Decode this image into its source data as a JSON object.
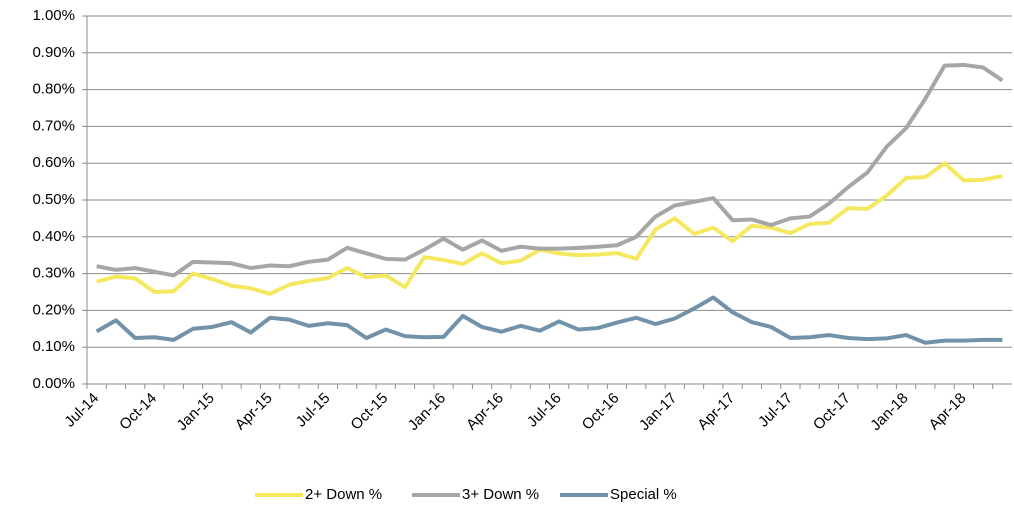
{
  "chart_data": {
    "type": "line",
    "categories": [
      "Jul-14",
      null,
      null,
      "Oct-14",
      null,
      null,
      "Jan-15",
      null,
      null,
      "Apr-15",
      null,
      null,
      "Jul-15",
      null,
      null,
      "Oct-15",
      null,
      null,
      "Jan-16",
      null,
      null,
      "Apr-16",
      null,
      null,
      "Jul-16",
      null,
      null,
      "Oct-16",
      null,
      null,
      "Jan-17",
      null,
      null,
      "Apr-17",
      null,
      null,
      "Jul-17",
      null,
      null,
      "Oct-17",
      null,
      null,
      "Jan-18",
      null,
      null,
      "Apr-18",
      null,
      null
    ],
    "series": [
      {
        "name": "2+ Down %",
        "color": "#f5e861",
        "values": [
          0.278,
          0.292,
          0.287,
          0.25,
          0.252,
          0.3,
          0.285,
          0.267,
          0.26,
          0.245,
          0.27,
          0.28,
          0.288,
          0.315,
          0.29,
          0.295,
          0.263,
          0.345,
          0.337,
          0.326,
          0.355,
          0.328,
          0.335,
          0.365,
          0.355,
          0.35,
          0.352,
          0.356,
          0.34,
          0.42,
          0.45,
          0.408,
          0.425,
          0.388,
          0.43,
          0.425,
          0.41,
          0.435,
          0.438,
          0.478,
          0.476,
          0.512,
          0.56,
          0.562,
          0.6,
          0.553,
          0.555,
          0.565
        ]
      },
      {
        "name": "3+ Down %",
        "color": "#a6a6a6",
        "values": [
          0.32,
          0.31,
          0.315,
          0.305,
          0.295,
          0.332,
          0.33,
          0.328,
          0.315,
          0.322,
          0.32,
          0.332,
          0.338,
          0.37,
          0.355,
          0.34,
          0.338,
          0.365,
          0.395,
          0.365,
          0.39,
          0.362,
          0.373,
          0.368,
          0.368,
          0.37,
          0.373,
          0.377,
          0.4,
          0.455,
          0.485,
          0.495,
          0.505,
          0.445,
          0.447,
          0.432,
          0.45,
          0.455,
          0.49,
          0.535,
          0.575,
          0.645,
          0.695,
          0.775,
          0.865,
          0.867,
          0.86,
          0.825
        ]
      },
      {
        "name": "Special %",
        "color": "#7292a9",
        "values": [
          0.143,
          0.173,
          0.125,
          0.127,
          0.12,
          0.15,
          0.155,
          0.168,
          0.14,
          0.18,
          0.175,
          0.158,
          0.165,
          0.16,
          0.125,
          0.148,
          0.13,
          0.127,
          0.128,
          0.185,
          0.155,
          0.142,
          0.158,
          0.145,
          0.17,
          0.148,
          0.152,
          0.167,
          0.18,
          0.163,
          0.178,
          0.205,
          0.235,
          0.195,
          0.168,
          0.155,
          0.125,
          0.127,
          0.133,
          0.125,
          0.122,
          0.124,
          0.133,
          0.112,
          0.118,
          0.118,
          0.12,
          0.12
        ]
      }
    ],
    "ylim": [
      0,
      1
    ],
    "yticks": [
      {
        "value": 0,
        "label": "0.00%"
      },
      {
        "value": 0.1,
        "label": "0.10%"
      },
      {
        "value": 0.2,
        "label": "0.20%"
      },
      {
        "value": 0.3,
        "label": "0.30%"
      },
      {
        "value": 0.4,
        "label": "0.40%"
      },
      {
        "value": 0.5,
        "label": "0.50%"
      },
      {
        "value": 0.6,
        "label": "0.60%"
      },
      {
        "value": 0.7,
        "label": "0.70%"
      },
      {
        "value": 0.8,
        "label": "0.80%"
      },
      {
        "value": 0.9,
        "label": "0.90%"
      },
      {
        "value": 1,
        "label": "1.00%"
      }
    ],
    "grid": true,
    "legend": "bottom"
  }
}
